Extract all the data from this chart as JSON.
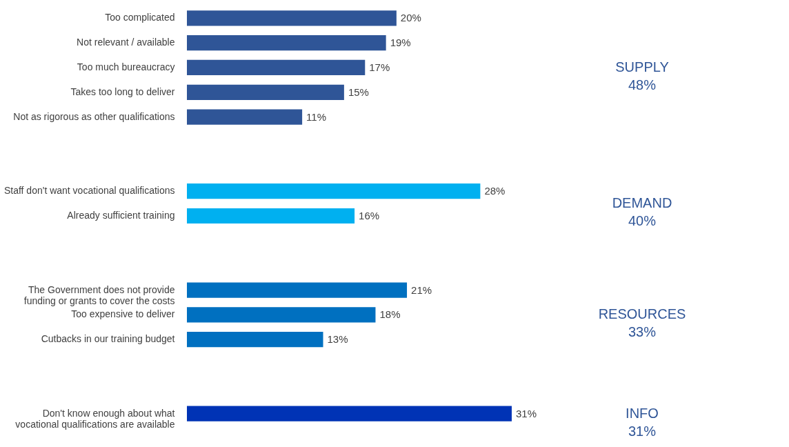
{
  "chart_data": {
    "type": "bar",
    "orientation": "horizontal",
    "categories": [
      "Too complicated",
      "Not relevant / available",
      "Too much bureaucracy",
      "Takes too long to deliver",
      "Not as rigorous as other qualifications",
      null,
      null,
      "Staff don't want vocational qualifications",
      "Already sufficient training",
      null,
      null,
      "The Government does not provide\nfunding or grants to cover the costs",
      "Too expensive to deliver",
      "Cutbacks in our training budget",
      null,
      null,
      "Don't know enough about what\nvocational qualifications are available"
    ],
    "values": [
      20,
      19,
      17,
      15,
      11,
      null,
      null,
      28,
      16,
      null,
      null,
      21,
      18,
      13,
      null,
      null,
      31
    ],
    "value_labels": [
      "20%",
      "19%",
      "17%",
      "15%",
      "11%",
      null,
      null,
      "28%",
      "16%",
      null,
      null,
      "21%",
      "18%",
      "13%",
      null,
      null,
      "31%"
    ],
    "colors": [
      "#2f5597",
      "#2f5597",
      "#2f5597",
      "#2f5597",
      "#2f5597",
      null,
      null,
      "#00b0f0",
      "#00b0f0",
      null,
      null,
      "#0070c0",
      "#0070c0",
      "#0070c0",
      null,
      null,
      "#0033b5"
    ],
    "annotations": [
      "SUPPLY\n48%",
      "DEMAND\n40%",
      "RESOURCES\n33%",
      "INFO\n31%"
    ],
    "grid": false
  }
}
